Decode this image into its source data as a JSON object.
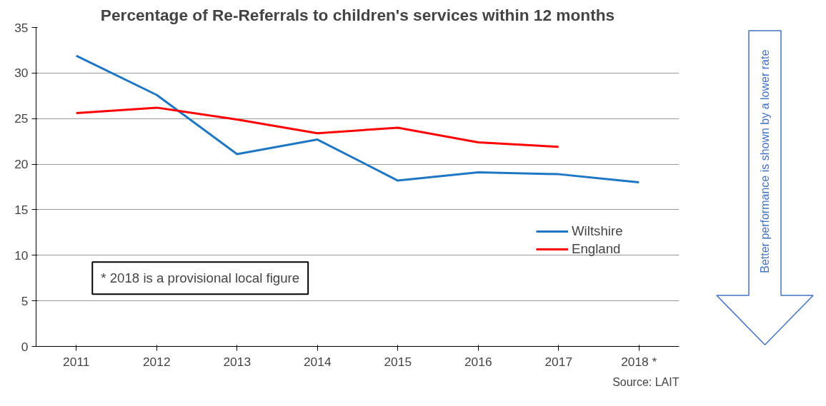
{
  "chart_data": {
    "type": "line",
    "title": "Percentage of Re-Referrals to children's services within 12 months",
    "categories": [
      "2011",
      "2012",
      "2013",
      "2014",
      "2015",
      "2016",
      "2017",
      "2018 *"
    ],
    "series": [
      {
        "name": "Wiltshire",
        "color": "#1f77c4",
        "values": [
          31.9,
          27.6,
          21.1,
          22.7,
          18.2,
          19.1,
          18.9,
          18.0
        ]
      },
      {
        "name": "England",
        "color": "#ff0000",
        "values": [
          25.6,
          26.2,
          24.9,
          23.4,
          24.0,
          22.4,
          21.9,
          null
        ]
      }
    ],
    "ylim": [
      0,
      35
    ],
    "yticks": [
      0,
      5,
      10,
      15,
      20,
      25,
      30,
      35
    ],
    "grid": "y",
    "legend": "right",
    "marker": "none",
    "line_style": "solid",
    "annotations": [
      "* 2018 is a provisional local figure",
      "Source: LAIT",
      "Better performance is shown by a lower rate"
    ]
  }
}
